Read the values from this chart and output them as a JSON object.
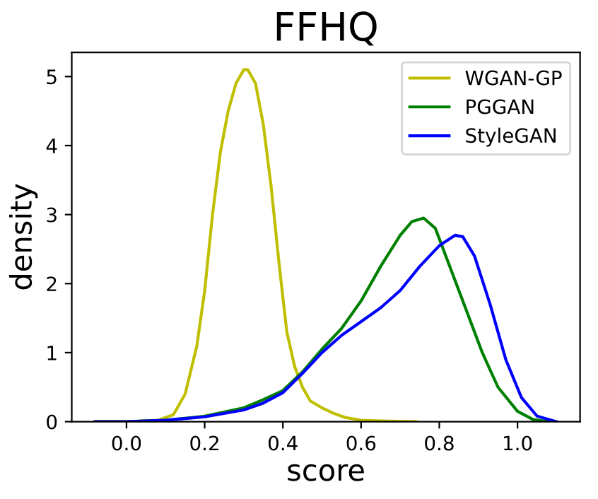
{
  "chart_data": {
    "type": "line",
    "title": "FFHQ",
    "xlabel": "score",
    "ylabel": "density",
    "xlim": [
      -0.14,
      1.16
    ],
    "ylim": [
      0,
      5.35
    ],
    "xticks": [
      {
        "value": 0,
        "label": "0.0"
      },
      0.2,
      0.4,
      0.6,
      0.8,
      {
        "value": 1,
        "label": "1.0"
      }
    ],
    "yticks": [
      0,
      1,
      2,
      3,
      4,
      5
    ],
    "legend": "top right",
    "grid": false,
    "series": [
      {
        "name": "WGAN-GP",
        "color": "#bfbf00",
        "x": [
          -0.08,
          0.0,
          0.08,
          0.12,
          0.15,
          0.18,
          0.2,
          0.22,
          0.24,
          0.26,
          0.28,
          0.3,
          0.31,
          0.33,
          0.35,
          0.37,
          0.39,
          0.41,
          0.43,
          0.45,
          0.47,
          0.5,
          0.53,
          0.56,
          0.6,
          0.65,
          0.74
        ],
        "values": [
          0,
          0,
          0.02,
          0.1,
          0.4,
          1.1,
          1.9,
          3.0,
          3.9,
          4.5,
          4.9,
          5.1,
          5.1,
          4.9,
          4.3,
          3.4,
          2.3,
          1.3,
          0.8,
          0.5,
          0.3,
          0.2,
          0.12,
          0.06,
          0.02,
          0.01,
          0
        ]
      },
      {
        "name": "PGGAN",
        "color": "#008000",
        "x": [
          -0.08,
          0.0,
          0.1,
          0.2,
          0.3,
          0.35,
          0.4,
          0.45,
          0.5,
          0.55,
          0.6,
          0.65,
          0.7,
          0.73,
          0.76,
          0.79,
          0.83,
          0.87,
          0.91,
          0.95,
          1.0,
          1.04,
          1.08
        ],
        "values": [
          0,
          0,
          0.02,
          0.08,
          0.2,
          0.32,
          0.45,
          0.72,
          1.05,
          1.35,
          1.75,
          2.25,
          2.7,
          2.9,
          2.95,
          2.8,
          2.2,
          1.6,
          1.0,
          0.5,
          0.15,
          0.03,
          0
        ]
      },
      {
        "name": "StyleGAN",
        "color": "#0000ff",
        "x": [
          -0.08,
          0.0,
          0.1,
          0.2,
          0.3,
          0.35,
          0.4,
          0.45,
          0.5,
          0.55,
          0.6,
          0.65,
          0.7,
          0.75,
          0.8,
          0.84,
          0.86,
          0.89,
          0.93,
          0.97,
          1.01,
          1.05,
          1.1
        ],
        "values": [
          0,
          0,
          0.02,
          0.07,
          0.17,
          0.27,
          0.42,
          0.7,
          1.0,
          1.25,
          1.45,
          1.65,
          1.9,
          2.25,
          2.55,
          2.7,
          2.68,
          2.4,
          1.7,
          0.9,
          0.35,
          0.08,
          0
        ]
      }
    ]
  }
}
